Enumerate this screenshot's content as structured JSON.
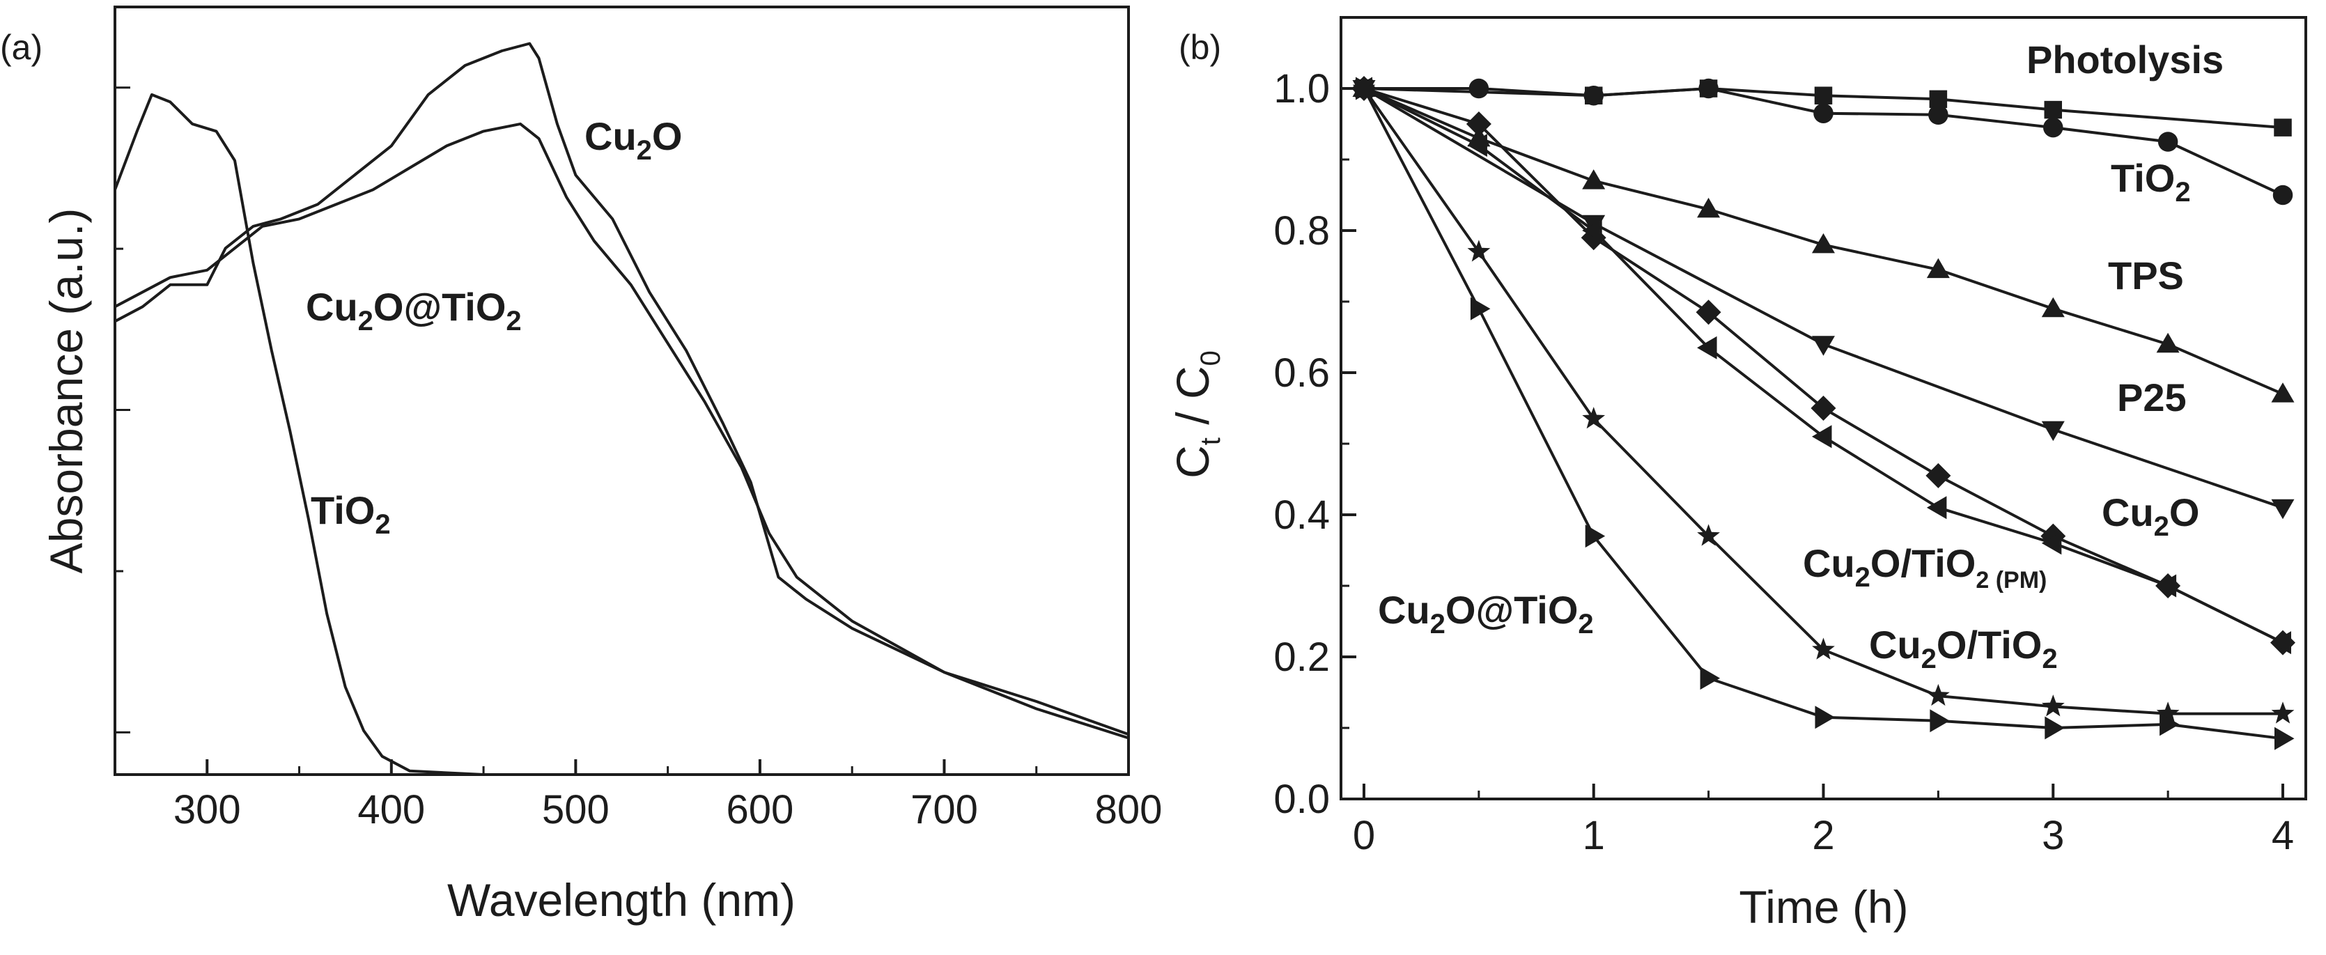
{
  "chart_data": [
    {
      "panel": "(a)",
      "type": "line",
      "xlabel": "Wavelength (nm)",
      "ylabel": "Absorbance (a.u.)",
      "xlim": [
        250,
        800
      ],
      "ylim": [
        0,
        1.05
      ],
      "xticks": [
        "300",
        "400",
        "500",
        "600",
        "700",
        "800"
      ],
      "yticks_labeled": false,
      "series": [
        {
          "name": "Cu2O",
          "label_parts": [
            "Cu",
            "2",
            "O"
          ],
          "points": [
            [
              250,
              0.62
            ],
            [
              265,
              0.64
            ],
            [
              280,
              0.67
            ],
            [
              300,
              0.67
            ],
            [
              310,
              0.72
            ],
            [
              325,
              0.75
            ],
            [
              340,
              0.76
            ],
            [
              360,
              0.78
            ],
            [
              380,
              0.82
            ],
            [
              400,
              0.86
            ],
            [
              420,
              0.93
            ],
            [
              440,
              0.97
            ],
            [
              460,
              0.99
            ],
            [
              475,
              1.0
            ],
            [
              480,
              0.98
            ],
            [
              490,
              0.89
            ],
            [
              500,
              0.82
            ],
            [
              520,
              0.76
            ],
            [
              540,
              0.66
            ],
            [
              560,
              0.58
            ],
            [
              580,
              0.48
            ],
            [
              595,
              0.4
            ],
            [
              610,
              0.27
            ],
            [
              625,
              0.24
            ],
            [
              650,
              0.2
            ],
            [
              700,
              0.14
            ],
            [
              750,
              0.09
            ],
            [
              800,
              0.05
            ]
          ]
        },
        {
          "name": "Cu2O@TiO2",
          "label_parts": [
            "Cu",
            "2",
            "O@TiO",
            "2"
          ],
          "points": [
            [
              250,
              0.64
            ],
            [
              265,
              0.66
            ],
            [
              280,
              0.68
            ],
            [
              300,
              0.69
            ],
            [
              315,
              0.72
            ],
            [
              330,
              0.75
            ],
            [
              350,
              0.76
            ],
            [
              370,
              0.78
            ],
            [
              390,
              0.8
            ],
            [
              410,
              0.83
            ],
            [
              430,
              0.86
            ],
            [
              450,
              0.88
            ],
            [
              470,
              0.89
            ],
            [
              480,
              0.87
            ],
            [
              495,
              0.79
            ],
            [
              510,
              0.73
            ],
            [
              530,
              0.67
            ],
            [
              550,
              0.59
            ],
            [
              570,
              0.51
            ],
            [
              590,
              0.42
            ],
            [
              605,
              0.33
            ],
            [
              620,
              0.27
            ],
            [
              650,
              0.21
            ],
            [
              700,
              0.14
            ],
            [
              750,
              0.1
            ],
            [
              800,
              0.055
            ]
          ]
        },
        {
          "name": "TiO2",
          "label_parts": [
            "TiO",
            "2"
          ],
          "points": [
            [
              250,
              0.8
            ],
            [
              262,
              0.88
            ],
            [
              270,
              0.93
            ],
            [
              280,
              0.92
            ],
            [
              292,
              0.89
            ],
            [
              305,
              0.88
            ],
            [
              315,
              0.84
            ],
            [
              325,
              0.7
            ],
            [
              335,
              0.58
            ],
            [
              345,
              0.47
            ],
            [
              355,
              0.35
            ],
            [
              365,
              0.22
            ],
            [
              375,
              0.12
            ],
            [
              385,
              0.06
            ],
            [
              395,
              0.025
            ],
            [
              410,
              0.005
            ],
            [
              450,
              0.0
            ],
            [
              600,
              0.0
            ],
            [
              800,
              0.0
            ]
          ]
        }
      ]
    },
    {
      "panel": "(b)",
      "type": "line",
      "xlabel": "Time (h)",
      "ylabel_parts": [
        "C",
        "t",
        " / C",
        "0"
      ],
      "xlim": [
        -0.1,
        4.1
      ],
      "ylim": [
        0.0,
        1.1
      ],
      "xticks": [
        "0",
        "1",
        "2",
        "3",
        "4"
      ],
      "yticks": [
        "0.0",
        "0.2",
        "0.4",
        "0.6",
        "0.8",
        "1.0"
      ],
      "series": [
        {
          "name": "Photolysis",
          "label_parts": [
            "Photolysis"
          ],
          "marker": "square",
          "x": [
            0,
            1,
            1.5,
            2,
            2.5,
            3,
            4
          ],
          "y": [
            1.0,
            0.99,
            1.0,
            0.99,
            0.985,
            0.97,
            0.945
          ]
        },
        {
          "name": "TiO2",
          "label_parts": [
            "TiO",
            "2"
          ],
          "marker": "circle",
          "x": [
            0,
            0.5,
            1,
            1.5,
            2,
            2.5,
            3,
            3.5,
            4
          ],
          "y": [
            1.0,
            1.0,
            0.99,
            1.0,
            0.965,
            0.963,
            0.945,
            0.925,
            0.85
          ]
        },
        {
          "name": "TPS",
          "label_parts": [
            "TPS"
          ],
          "marker": "triangle-up",
          "x": [
            0,
            0.5,
            1,
            1.5,
            2,
            2.5,
            3,
            3.5,
            4
          ],
          "y": [
            1.0,
            0.93,
            0.87,
            0.83,
            0.78,
            0.745,
            0.69,
            0.64,
            0.57
          ]
        },
        {
          "name": "P25",
          "label_parts": [
            "P25"
          ],
          "marker": "triangle-down",
          "x": [
            0,
            1,
            2,
            3,
            4
          ],
          "y": [
            1.0,
            0.81,
            0.64,
            0.52,
            0.41
          ]
        },
        {
          "name": "Cu2O",
          "label_parts": [
            "Cu",
            "2",
            "O"
          ],
          "marker": "diamond",
          "x": [
            0,
            0.5,
            1,
            1.5,
            2,
            2.5,
            3,
            3.5,
            4
          ],
          "y": [
            1.0,
            0.95,
            0.79,
            0.685,
            0.55,
            0.455,
            0.37,
            0.3,
            0.22
          ]
        },
        {
          "name": "Cu2O/TiO2 (PM)",
          "label_parts": [
            "Cu",
            "2",
            "O/TiO",
            "2 (PM)"
          ],
          "marker": "triangle-left",
          "x": [
            0,
            0.5,
            1,
            1.5,
            2,
            2.5,
            3,
            3.5,
            4
          ],
          "y": [
            1.0,
            0.92,
            0.8,
            0.635,
            0.51,
            0.41,
            0.36,
            0.3,
            0.22
          ]
        },
        {
          "name": "Cu2O/TiO2",
          "label_parts": [
            "Cu",
            "2",
            "O/TiO",
            "2"
          ],
          "marker": "star",
          "x": [
            0,
            0.5,
            1,
            1.5,
            2,
            2.5,
            3,
            3.5,
            4
          ],
          "y": [
            1.0,
            0.77,
            0.535,
            0.37,
            0.21,
            0.145,
            0.13,
            0.12,
            0.12
          ]
        },
        {
          "name": "Cu2O@TiO2",
          "label_parts": [
            "Cu",
            "2",
            "O@TiO",
            "2"
          ],
          "marker": "triangle-right",
          "x": [
            0,
            0.5,
            1,
            1.5,
            2,
            2.5,
            3,
            3.5,
            4
          ],
          "y": [
            1.0,
            0.69,
            0.37,
            0.17,
            0.115,
            0.11,
            0.1,
            0.105,
            0.085
          ]
        }
      ]
    }
  ]
}
